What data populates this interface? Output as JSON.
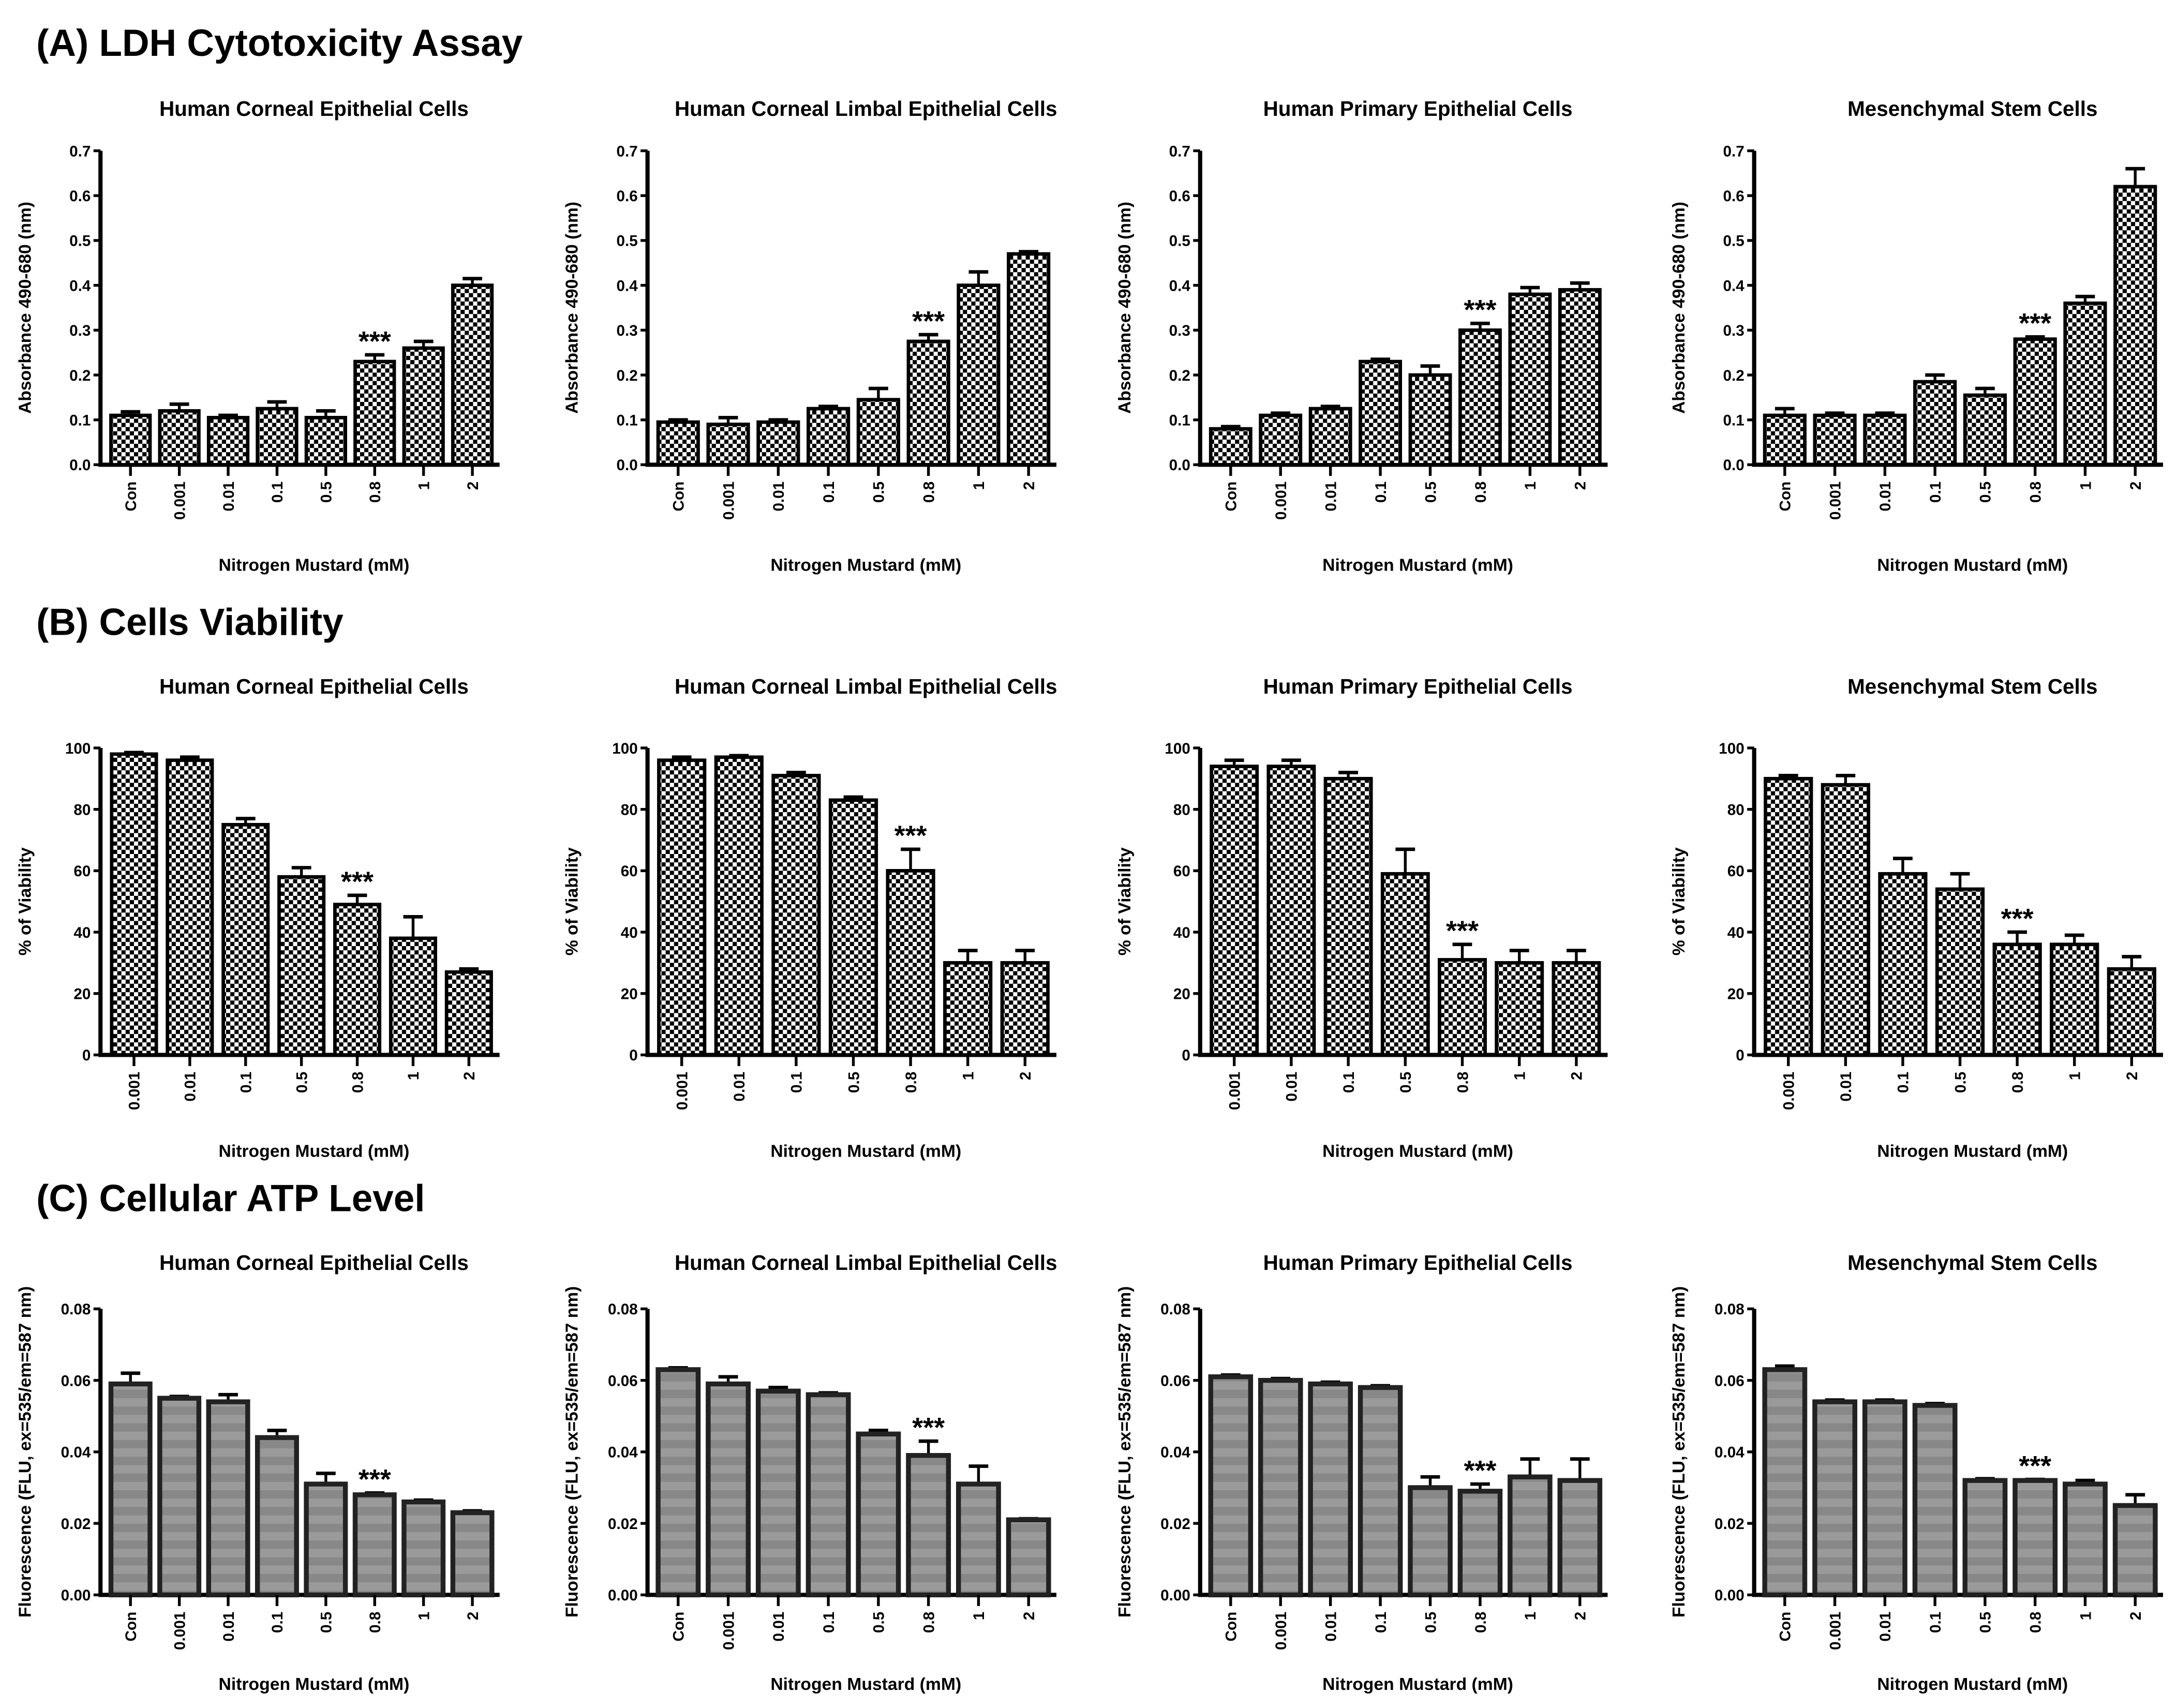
{
  "sections": [
    {
      "title": "(A) LDH Cytotoxicity Assay"
    },
    {
      "title": "(B) Cells Viability"
    },
    {
      "title": "(C) Cellular ATP Level"
    }
  ],
  "chart_data": [
    {
      "type": "bar",
      "section": 0,
      "title": "Human Corneal Epithelial Cells",
      "xlabel": "Nitrogen Mustard  (mM)",
      "ylabel": "Absorbance 490-680 (nm)",
      "ylim": [
        0,
        0.7
      ],
      "yticks": [
        "0.0",
        "0.1",
        "0.2",
        "0.3",
        "0.4",
        "0.5",
        "0.6",
        "0.7"
      ],
      "categories": [
        "Con",
        "0.001",
        "0.01",
        "0.1",
        "0.5",
        "0.8",
        "1",
        "2"
      ],
      "values": [
        0.11,
        0.12,
        0.105,
        0.125,
        0.105,
        0.23,
        0.26,
        0.4
      ],
      "errors": [
        0.008,
        0.015,
        0.005,
        0.015,
        0.015,
        0.015,
        0.015,
        0.015
      ],
      "annotation": {
        "text": "***",
        "index": 5
      },
      "fill": "checker"
    },
    {
      "type": "bar",
      "section": 0,
      "title": "Human Corneal Limbal Epithelial Cells",
      "xlabel": "Nitrogen Mustard  (mM)",
      "ylabel": "Absorbance 490-680 (nm)",
      "ylim": [
        0,
        0.7
      ],
      "yticks": [
        "0.0",
        "0.1",
        "0.2",
        "0.3",
        "0.4",
        "0.5",
        "0.6",
        "0.7"
      ],
      "categories": [
        "Con",
        "0.001",
        "0.01",
        "0.1",
        "0.5",
        "0.8",
        "1",
        "2"
      ],
      "values": [
        0.095,
        0.09,
        0.095,
        0.125,
        0.145,
        0.275,
        0.4,
        0.47
      ],
      "errors": [
        0.005,
        0.015,
        0.005,
        0.005,
        0.025,
        0.015,
        0.03,
        0.005
      ],
      "annotation": {
        "text": "***",
        "index": 5
      },
      "fill": "checker"
    },
    {
      "type": "bar",
      "section": 0,
      "title": "Human Primary Epithelial Cells",
      "xlabel": "Nitrogen Mustard  (mM)",
      "ylabel": "Absorbance 490-680 (nm)",
      "ylim": [
        0,
        0.7
      ],
      "yticks": [
        "0.0",
        "0.1",
        "0.2",
        "0.3",
        "0.4",
        "0.5",
        "0.6",
        "0.7"
      ],
      "categories": [
        "Con",
        "0.001",
        "0.01",
        "0.1",
        "0.5",
        "0.8",
        "1",
        "2"
      ],
      "values": [
        0.08,
        0.11,
        0.125,
        0.23,
        0.2,
        0.3,
        0.38,
        0.39
      ],
      "errors": [
        0.005,
        0.005,
        0.005,
        0.005,
        0.02,
        0.015,
        0.015,
        0.015
      ],
      "annotation": {
        "text": "***",
        "index": 5
      },
      "fill": "checker"
    },
    {
      "type": "bar",
      "section": 0,
      "title": "Mesenchymal  Stem Cells",
      "xlabel": "Nitrogen Mustard  (mM)",
      "ylabel": "Absorbance 490-680 (nm)",
      "ylim": [
        0,
        0.7
      ],
      "yticks": [
        "0.0",
        "0.1",
        "0.2",
        "0.3",
        "0.4",
        "0.5",
        "0.6",
        "0.7"
      ],
      "categories": [
        "Con",
        "0.001",
        "0.01",
        "0.1",
        "0.5",
        "0.8",
        "1",
        "2"
      ],
      "values": [
        0.11,
        0.11,
        0.11,
        0.185,
        0.155,
        0.28,
        0.36,
        0.62
      ],
      "errors": [
        0.015,
        0.005,
        0.005,
        0.015,
        0.015,
        0.005,
        0.015,
        0.04
      ],
      "annotation": {
        "text": "***",
        "index": 5
      },
      "fill": "checker"
    },
    {
      "type": "bar",
      "section": 1,
      "title": "Human Corneal Epithelial Cells",
      "xlabel": "Nitrogen Mustard  (mM)",
      "ylabel": "% of Viability",
      "ylim": [
        0,
        100
      ],
      "yticks": [
        "0",
        "20",
        "40",
        "60",
        "80",
        "100"
      ],
      "categories": [
        "0.001",
        "0.01",
        "0.1",
        "0.5",
        "0.8",
        "1",
        "2"
      ],
      "values": [
        98,
        96,
        75,
        58,
        49,
        38,
        27
      ],
      "errors": [
        0.5,
        1,
        2,
        3,
        3,
        7,
        1
      ],
      "annotation": {
        "text": "***",
        "index": 4
      },
      "fill": "checker"
    },
    {
      "type": "bar",
      "section": 1,
      "title": "Human Corneal Limbal Epithelial Cells",
      "xlabel": "Nitrogen Mustard  (mM)",
      "ylabel": "% of Viability",
      "ylim": [
        0,
        100
      ],
      "yticks": [
        "0",
        "20",
        "40",
        "60",
        "80",
        "100"
      ],
      "categories": [
        "0.001",
        "0.01",
        "0.1",
        "0.5",
        "0.8",
        "1",
        "2"
      ],
      "values": [
        96,
        97,
        91,
        83,
        60,
        30,
        30
      ],
      "errors": [
        1,
        0.5,
        1,
        1,
        7,
        4,
        4
      ],
      "annotation": {
        "text": "***",
        "index": 4
      },
      "fill": "checker"
    },
    {
      "type": "bar",
      "section": 1,
      "title": "Human Primary  Epithelial Cells",
      "xlabel": "Nitrogen Mustard  (mM)",
      "ylabel": "% of Viability",
      "ylim": [
        0,
        100
      ],
      "yticks": [
        "0",
        "20",
        "40",
        "60",
        "80",
        "100"
      ],
      "categories": [
        "0.001",
        "0.01",
        "0.1",
        "0.5",
        "0.8",
        "1",
        "2"
      ],
      "values": [
        94,
        94,
        90,
        59,
        31,
        30,
        30
      ],
      "errors": [
        2,
        2,
        2,
        8,
        5,
        4,
        4
      ],
      "annotation": {
        "text": "***",
        "index": 4
      },
      "fill": "checker"
    },
    {
      "type": "bar",
      "section": 1,
      "title": "Mesenchymal  Stem Cells",
      "xlabel": "Nitrogen Mustard  (mM)",
      "ylabel": "% of Viability",
      "ylim": [
        0,
        100
      ],
      "yticks": [
        "0",
        "20",
        "40",
        "60",
        "80",
        "100"
      ],
      "categories": [
        "0.001",
        "0.01",
        "0.1",
        "0.5",
        "0.8",
        "1",
        "2"
      ],
      "values": [
        90,
        88,
        59,
        54,
        36,
        36,
        28
      ],
      "errors": [
        1,
        3,
        5,
        5,
        4,
        3,
        4
      ],
      "annotation": {
        "text": "***",
        "index": 4
      },
      "fill": "checker"
    },
    {
      "type": "bar",
      "section": 2,
      "title": "Human Corneal Epithelial Cells",
      "xlabel": "Nitrogen Mustard  (mM)",
      "ylabel": "Fluorescence (FLU, ex=535/em=587 nm)",
      "ylim": [
        0,
        0.08
      ],
      "yticks": [
        "0.00",
        "0.02",
        "0.04",
        "0.06",
        "0.08"
      ],
      "categories": [
        "Con",
        "0.001",
        "0.01",
        "0.1",
        "0.5",
        "0.8",
        "1",
        "2"
      ],
      "values": [
        0.059,
        0.055,
        0.054,
        0.044,
        0.031,
        0.028,
        0.026,
        0.023
      ],
      "errors": [
        0.003,
        0.0005,
        0.002,
        0.002,
        0.003,
        0.0005,
        0.0005,
        0.0005
      ],
      "annotation": {
        "text": "***",
        "index": 5
      },
      "fill": "gray"
    },
    {
      "type": "bar",
      "section": 2,
      "title": "Human Corneal Limbal Epithelial Cells",
      "xlabel": "Nitrogen Mustard  (mM)",
      "ylabel": "Fluorescence (FLU, ex=535/em=587 nm)",
      "ylim": [
        0,
        0.08
      ],
      "yticks": [
        "0.00",
        "0.02",
        "0.04",
        "0.06",
        "0.08"
      ],
      "categories": [
        "Con",
        "0.001",
        "0.01",
        "0.1",
        "0.5",
        "0.8",
        "1",
        "2"
      ],
      "values": [
        0.063,
        0.059,
        0.057,
        0.056,
        0.045,
        0.039,
        0.031,
        0.021
      ],
      "errors": [
        0.0005,
        0.002,
        0.001,
        0.0005,
        0.001,
        0.004,
        0.005,
        0.0003
      ],
      "annotation": {
        "text": "***",
        "index": 5
      },
      "fill": "gray"
    },
    {
      "type": "bar",
      "section": 2,
      "title": "Human Primary  Epithelial Cells",
      "xlabel": "Nitrogen Mustard  (mM)",
      "ylabel": "Fluorescence (FLU, ex=535/em=587 nm)",
      "ylim": [
        0,
        0.08
      ],
      "yticks": [
        "0.00",
        "0.02",
        "0.04",
        "0.06",
        "0.08"
      ],
      "categories": [
        "Con",
        "0.001",
        "0.01",
        "0.1",
        "0.5",
        "0.8",
        "1",
        "2"
      ],
      "values": [
        0.061,
        0.06,
        0.059,
        0.058,
        0.03,
        0.029,
        0.033,
        0.032
      ],
      "errors": [
        0.0005,
        0.0005,
        0.0005,
        0.0005,
        0.003,
        0.002,
        0.005,
        0.006
      ],
      "annotation": {
        "text": "***",
        "index": 5
      },
      "fill": "gray"
    },
    {
      "type": "bar",
      "section": 2,
      "title": "Mesenchymal  Stem Cells",
      "xlabel": "Nitrogen Mustard  (mM)",
      "ylabel": "Fluorescence (FLU, ex=535/em=587 nm)",
      "ylim": [
        0,
        0.08
      ],
      "yticks": [
        "0.00",
        "0.02",
        "0.04",
        "0.06",
        "0.08"
      ],
      "categories": [
        "Con",
        "0.001",
        "0.01",
        "0.1",
        "0.5",
        "0.8",
        "1",
        "2"
      ],
      "values": [
        0.063,
        0.054,
        0.054,
        0.053,
        0.032,
        0.032,
        0.031,
        0.025
      ],
      "errors": [
        0.001,
        0.0005,
        0.0005,
        0.0005,
        0.0005,
        0.0003,
        0.001,
        0.003
      ],
      "annotation": {
        "text": "***",
        "index": 5
      },
      "fill": "gray"
    }
  ]
}
